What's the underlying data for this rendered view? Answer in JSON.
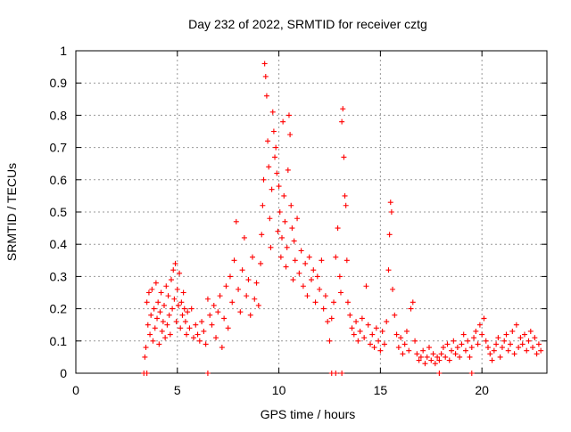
{
  "chart_data": {
    "type": "scatter",
    "title": "Day 232 of 2022, SRMTID for receiver cztg",
    "xlabel": "GPS time / hours",
    "ylabel": "SRMTID / TECUs",
    "xlim": [
      0,
      23.2
    ],
    "ylim": [
      0,
      1
    ],
    "xticks": [
      0,
      5,
      10,
      15,
      20
    ],
    "yticks": [
      0,
      0.1,
      0.2,
      0.3,
      0.4,
      0.5,
      0.6,
      0.7,
      0.8,
      0.9,
      1
    ],
    "grid": true,
    "marker": "+",
    "colors": {
      "series": "#ff0000",
      "grid": "#999999",
      "axis": "#000000"
    },
    "series": [
      {
        "name": "SRMTID",
        "points": [
          [
            3.4,
            0.05
          ],
          [
            3.45,
            0.08
          ],
          [
            3.5,
            0.22
          ],
          [
            3.55,
            0.15
          ],
          [
            3.6,
            0.25
          ],
          [
            3.65,
            0.12
          ],
          [
            3.7,
            0.18
          ],
          [
            3.75,
            0.26
          ],
          [
            3.8,
            0.1
          ],
          [
            3.85,
            0.2
          ],
          [
            3.9,
            0.14
          ],
          [
            3.95,
            0.28
          ],
          [
            4.0,
            0.17
          ],
          [
            4.05,
            0.22
          ],
          [
            4.1,
            0.09
          ],
          [
            4.15,
            0.19
          ],
          [
            4.2,
            0.25
          ],
          [
            4.25,
            0.13
          ],
          [
            4.3,
            0.16
          ],
          [
            4.35,
            0.21
          ],
          [
            4.4,
            0.11
          ],
          [
            4.45,
            0.27
          ],
          [
            4.5,
            0.15
          ],
          [
            4.55,
            0.24
          ],
          [
            4.6,
            0.18
          ],
          [
            4.65,
            0.12
          ],
          [
            4.7,
            0.29
          ],
          [
            4.75,
            0.2
          ],
          [
            4.8,
            0.32
          ],
          [
            4.85,
            0.23
          ],
          [
            4.9,
            0.34
          ],
          [
            4.95,
            0.16
          ],
          [
            5.0,
            0.26
          ],
          [
            5.05,
            0.21
          ],
          [
            5.1,
            0.31
          ],
          [
            5.15,
            0.14
          ],
          [
            5.2,
            0.22
          ],
          [
            5.25,
            0.18
          ],
          [
            5.3,
            0.25
          ],
          [
            5.35,
            0.2
          ],
          [
            5.4,
            0.16
          ],
          [
            5.45,
            0.12
          ],
          [
            5.5,
            0.19
          ],
          [
            5.6,
            0.14
          ],
          [
            5.7,
            0.2
          ],
          [
            5.8,
            0.11
          ],
          [
            5.9,
            0.15
          ],
          [
            6.0,
            0.12
          ],
          [
            6.1,
            0.1
          ],
          [
            6.2,
            0.16
          ],
          [
            6.3,
            0.13
          ],
          [
            6.4,
            0.09
          ],
          [
            6.5,
            0.23
          ],
          [
            6.6,
            0.18
          ],
          [
            6.7,
            0.15
          ],
          [
            6.8,
            0.21
          ],
          [
            6.9,
            0.11
          ],
          [
            7.0,
            0.19
          ],
          [
            7.1,
            0.24
          ],
          [
            7.2,
            0.08
          ],
          [
            7.3,
            0.17
          ],
          [
            7.4,
            0.27
          ],
          [
            7.5,
            0.14
          ],
          [
            7.6,
            0.3
          ],
          [
            7.7,
            0.22
          ],
          [
            7.8,
            0.35
          ],
          [
            7.9,
            0.47
          ],
          [
            8.0,
            0.26
          ],
          [
            8.1,
            0.19
          ],
          [
            8.2,
            0.32
          ],
          [
            8.3,
            0.42
          ],
          [
            8.4,
            0.24
          ],
          [
            8.5,
            0.29
          ],
          [
            8.6,
            0.18
          ],
          [
            8.7,
            0.36
          ],
          [
            8.8,
            0.23
          ],
          [
            8.9,
            0.28
          ],
          [
            9.0,
            0.21
          ],
          [
            9.1,
            0.34
          ],
          [
            9.15,
            0.43
          ],
          [
            9.2,
            0.52
          ],
          [
            9.25,
            0.6
          ],
          [
            9.3,
            0.96
          ],
          [
            9.35,
            0.92
          ],
          [
            9.4,
            0.86
          ],
          [
            9.45,
            0.72
          ],
          [
            9.5,
            0.64
          ],
          [
            9.55,
            0.48
          ],
          [
            9.6,
            0.39
          ],
          [
            9.65,
            0.57
          ],
          [
            9.7,
            0.81
          ],
          [
            9.75,
            0.75
          ],
          [
            9.8,
            0.67
          ],
          [
            9.85,
            0.7
          ],
          [
            9.9,
            0.62
          ],
          [
            9.95,
            0.44
          ],
          [
            10.0,
            0.58
          ],
          [
            10.05,
            0.5
          ],
          [
            10.1,
            0.36
          ],
          [
            10.15,
            0.42
          ],
          [
            10.2,
            0.78
          ],
          [
            10.25,
            0.55
          ],
          [
            10.3,
            0.47
          ],
          [
            10.35,
            0.33
          ],
          [
            10.4,
            0.39
          ],
          [
            10.45,
            0.63
          ],
          [
            10.5,
            0.8
          ],
          [
            10.55,
            0.74
          ],
          [
            10.6,
            0.52
          ],
          [
            10.65,
            0.45
          ],
          [
            10.7,
            0.29
          ],
          [
            10.75,
            0.41
          ],
          [
            10.8,
            0.35
          ],
          [
            10.9,
            0.48
          ],
          [
            11.0,
            0.31
          ],
          [
            11.1,
            0.38
          ],
          [
            11.2,
            0.27
          ],
          [
            11.3,
            0.34
          ],
          [
            11.4,
            0.24
          ],
          [
            11.5,
            0.36
          ],
          [
            11.6,
            0.29
          ],
          [
            11.7,
            0.32
          ],
          [
            11.8,
            0.22
          ],
          [
            11.9,
            0.3
          ],
          [
            12.0,
            0.26
          ],
          [
            12.1,
            0.35
          ],
          [
            12.2,
            0.2
          ],
          [
            12.3,
            0.24
          ],
          [
            12.4,
            0.16
          ],
          [
            12.5,
            0.1
          ],
          [
            12.6,
            0.17
          ],
          [
            12.7,
            0.22
          ],
          [
            12.8,
            0.36
          ],
          [
            12.9,
            0.45
          ],
          [
            13.0,
            0.3
          ],
          [
            13.05,
            0.25
          ],
          [
            13.1,
            0.78
          ],
          [
            13.15,
            0.82
          ],
          [
            13.2,
            0.67
          ],
          [
            13.25,
            0.55
          ],
          [
            13.3,
            0.52
          ],
          [
            13.35,
            0.35
          ],
          [
            13.4,
            0.22
          ],
          [
            13.5,
            0.18
          ],
          [
            13.6,
            0.14
          ],
          [
            13.7,
            0.12
          ],
          [
            13.8,
            0.16
          ],
          [
            13.9,
            0.1
          ],
          [
            14.0,
            0.13
          ],
          [
            14.1,
            0.17
          ],
          [
            14.2,
            0.11
          ],
          [
            14.3,
            0.27
          ],
          [
            14.4,
            0.15
          ],
          [
            14.5,
            0.09
          ],
          [
            14.6,
            0.12
          ],
          [
            14.7,
            0.08
          ],
          [
            14.8,
            0.14
          ],
          [
            14.9,
            0.1
          ],
          [
            15.0,
            0.07
          ],
          [
            15.1,
            0.13
          ],
          [
            15.2,
            0.09
          ],
          [
            15.3,
            0.16
          ],
          [
            15.4,
            0.32
          ],
          [
            15.45,
            0.43
          ],
          [
            15.5,
            0.53
          ],
          [
            15.55,
            0.5
          ],
          [
            15.6,
            0.26
          ],
          [
            15.7,
            0.18
          ],
          [
            15.8,
            0.12
          ],
          [
            15.9,
            0.08
          ],
          [
            16.0,
            0.11
          ],
          [
            16.1,
            0.06
          ],
          [
            16.2,
            0.09
          ],
          [
            16.3,
            0.13
          ],
          [
            16.4,
            0.07
          ],
          [
            16.5,
            0.2
          ],
          [
            16.6,
            0.22
          ],
          [
            16.7,
            0.1
          ],
          [
            16.8,
            0.06
          ],
          [
            16.9,
            0.04
          ],
          [
            17.0,
            0.05
          ],
          [
            17.1,
            0.07
          ],
          [
            17.2,
            0.03
          ],
          [
            17.3,
            0.05
          ],
          [
            17.4,
            0.08
          ],
          [
            17.5,
            0.04
          ],
          [
            17.6,
            0.06
          ],
          [
            17.7,
            0.03
          ],
          [
            17.8,
            0.05
          ],
          [
            17.9,
            0.04
          ],
          [
            18.0,
            0.06
          ],
          [
            18.1,
            0.08
          ],
          [
            18.2,
            0.05
          ],
          [
            18.3,
            0.09
          ],
          [
            18.4,
            0.04
          ],
          [
            18.5,
            0.07
          ],
          [
            18.6,
            0.1
          ],
          [
            18.7,
            0.06
          ],
          [
            18.8,
            0.08
          ],
          [
            18.9,
            0.05
          ],
          [
            19.0,
            0.09
          ],
          [
            19.1,
            0.12
          ],
          [
            19.2,
            0.07
          ],
          [
            19.3,
            0.1
          ],
          [
            19.4,
            0.05
          ],
          [
            19.5,
            0.08
          ],
          [
            19.6,
            0.11
          ],
          [
            19.7,
            0.13
          ],
          [
            19.8,
            0.09
          ],
          [
            19.9,
            0.15
          ],
          [
            20.0,
            0.12
          ],
          [
            20.1,
            0.17
          ],
          [
            20.2,
            0.1
          ],
          [
            20.3,
            0.08
          ],
          [
            20.4,
            0.06
          ],
          [
            20.5,
            0.04
          ],
          [
            20.6,
            0.07
          ],
          [
            20.7,
            0.09
          ],
          [
            20.8,
            0.11
          ],
          [
            20.9,
            0.05
          ],
          [
            21.0,
            0.08
          ],
          [
            21.1,
            0.1
          ],
          [
            21.2,
            0.12
          ],
          [
            21.3,
            0.07
          ],
          [
            21.4,
            0.09
          ],
          [
            21.5,
            0.13
          ],
          [
            21.6,
            0.06
          ],
          [
            21.7,
            0.15
          ],
          [
            21.8,
            0.08
          ],
          [
            21.9,
            0.11
          ],
          [
            22.0,
            0.09
          ],
          [
            22.1,
            0.12
          ],
          [
            22.2,
            0.07
          ],
          [
            22.3,
            0.1
          ],
          [
            22.4,
            0.13
          ],
          [
            22.5,
            0.08
          ],
          [
            22.6,
            0.11
          ],
          [
            22.7,
            0.06
          ],
          [
            22.8,
            0.09
          ],
          [
            22.9,
            0.07
          ],
          [
            3.35,
            0.0
          ],
          [
            3.5,
            0.0
          ],
          [
            6.5,
            0.0
          ],
          [
            12.6,
            0.0
          ],
          [
            12.8,
            0.0
          ],
          [
            13.1,
            0.0
          ],
          [
            17.9,
            0.0
          ],
          [
            19.5,
            0.0
          ]
        ]
      }
    ]
  }
}
